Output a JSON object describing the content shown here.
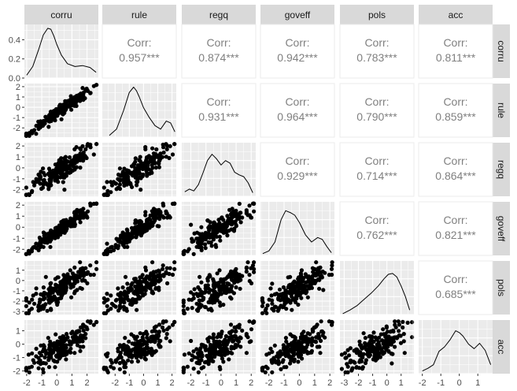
{
  "chart_data": {
    "type": "scatter",
    "title": "",
    "variables": [
      "corru",
      "rule",
      "regq",
      "goveff",
      "pols",
      "acc"
    ],
    "correlations": [
      [
        null,
        "0.957***",
        "0.874***",
        "0.942***",
        "0.783***",
        "0.811***"
      ],
      [
        null,
        null,
        "0.931***",
        "0.964***",
        "0.790***",
        "0.859***"
      ],
      [
        null,
        null,
        null,
        "0.929***",
        "0.714***",
        "0.864***"
      ],
      [
        null,
        null,
        null,
        null,
        "0.762***",
        "0.821***"
      ],
      [
        null,
        null,
        null,
        null,
        null,
        "0.685***"
      ],
      [
        null,
        null,
        null,
        null,
        null,
        null
      ]
    ],
    "corr_label": "Corr:",
    "x_axis": {
      "corru": {
        "range": [
          -2.15,
          2.75
        ],
        "ticks": [
          -2,
          -1,
          0,
          1,
          2
        ],
        "tick_labels": [
          "-2",
          "-1",
          "0",
          "1",
          "2"
        ]
      },
      "rule": {
        "range": [
          -2.9,
          2.3
        ],
        "ticks": [
          -2,
          -1,
          0,
          1,
          2
        ],
        "tick_labels": [
          "-2",
          "-1",
          "0",
          "1",
          "2"
        ]
      },
      "regq": {
        "range": [
          -2.6,
          2.3
        ],
        "ticks": [
          -2,
          -1,
          0,
          1,
          2
        ],
        "tick_labels": [
          "-2",
          "-1",
          "0",
          "1",
          "2"
        ]
      },
      "goveff": {
        "range": [
          -2.55,
          2.3
        ],
        "ticks": [
          -2,
          -1,
          0,
          1,
          2
        ],
        "tick_labels": [
          "-2",
          "-1",
          "0",
          "1",
          "2"
        ]
      },
      "pols": {
        "range": [
          -3.3,
          1.9
        ],
        "ticks": [
          -3,
          -2,
          -1,
          0,
          1
        ],
        "tick_labels": [
          "-3",
          "-2",
          "-1",
          "0",
          "1"
        ]
      },
      "acc": {
        "range": [
          -2.2,
          1.8
        ],
        "ticks": [
          -2,
          -1,
          0,
          1
        ],
        "tick_labels": [
          "-2",
          "-1",
          "0",
          "1"
        ]
      }
    },
    "y_axis_rows": [
      {
        "var": "corru",
        "range": [
          0,
          0.56
        ],
        "ticks": [
          0.0,
          0.2,
          0.4
        ],
        "tick_labels": [
          "0.0",
          "0.2",
          "0.4"
        ]
      },
      {
        "var": "rule",
        "range": [
          -2.9,
          2.3
        ],
        "ticks": [
          -2,
          -1,
          0,
          1,
          2
        ],
        "tick_labels": [
          "-2",
          "-1",
          "0",
          "1",
          "2"
        ]
      },
      {
        "var": "regq",
        "range": [
          -2.6,
          2.3
        ],
        "ticks": [
          -2,
          -1,
          0,
          1,
          2
        ],
        "tick_labels": [
          "-2",
          "-1",
          "0",
          "1",
          "2"
        ]
      },
      {
        "var": "goveff",
        "range": [
          -2.55,
          2.3
        ],
        "ticks": [
          -2,
          -1,
          0,
          1,
          2
        ],
        "tick_labels": [
          "-2",
          "-1",
          "0",
          "1",
          "2"
        ]
      },
      {
        "var": "pols",
        "range": [
          -3.3,
          1.9
        ],
        "ticks": [
          -3,
          -2,
          -1,
          0,
          1
        ],
        "tick_labels": [
          "-3",
          "-2",
          "-1",
          "0",
          "1"
        ]
      },
      {
        "var": "acc",
        "range": [
          -2.2,
          1.8
        ],
        "ticks": [
          -2,
          -1,
          0,
          1
        ],
        "tick_labels": [
          "-2",
          "-1",
          "0",
          "1"
        ]
      }
    ],
    "densities": {
      "corru": {
        "x": [
          -2.0,
          -1.6,
          -1.2,
          -0.9,
          -0.6,
          -0.4,
          -0.2,
          0.0,
          0.3,
          0.7,
          1.2,
          1.7,
          2.2,
          2.6
        ],
        "y": [
          0.03,
          0.12,
          0.3,
          0.45,
          0.52,
          0.51,
          0.44,
          0.35,
          0.24,
          0.15,
          0.12,
          0.13,
          0.11,
          0.06
        ]
      },
      "rule": {
        "x": [
          -2.4,
          -1.9,
          -1.4,
          -1.0,
          -0.7,
          -0.5,
          -0.3,
          0.0,
          0.4,
          0.8,
          1.2,
          1.6,
          1.9,
          2.2
        ],
        "y": [
          0.02,
          0.09,
          0.3,
          0.5,
          0.56,
          0.52,
          0.45,
          0.33,
          0.22,
          0.13,
          0.09,
          0.18,
          0.16,
          0.06
        ]
      },
      "regq": {
        "x": [
          -2.4,
          -2.1,
          -1.8,
          -1.5,
          -1.2,
          -0.9,
          -0.6,
          -0.3,
          0.0,
          0.3,
          0.6,
          0.9,
          1.2,
          1.5,
          1.8,
          2.1
        ],
        "y": [
          0.05,
          0.08,
          0.06,
          0.13,
          0.26,
          0.4,
          0.47,
          0.42,
          0.35,
          0.4,
          0.37,
          0.27,
          0.24,
          0.22,
          0.15,
          0.04
        ]
      },
      "goveff": {
        "x": [
          -2.4,
          -2.0,
          -1.6,
          -1.2,
          -0.9,
          -0.6,
          -0.3,
          0.0,
          0.4,
          0.8,
          1.2,
          1.5,
          1.8,
          2.1
        ],
        "y": [
          0.02,
          0.05,
          0.15,
          0.4,
          0.5,
          0.48,
          0.45,
          0.37,
          0.23,
          0.15,
          0.2,
          0.18,
          0.1,
          0.03
        ]
      },
      "pols": {
        "x": [
          -3.1,
          -2.6,
          -2.1,
          -1.6,
          -1.1,
          -0.6,
          -0.2,
          0.1,
          0.4,
          0.7,
          1.0,
          1.3,
          1.6
        ],
        "y": [
          0.01,
          0.05,
          0.1,
          0.17,
          0.24,
          0.32,
          0.4,
          0.45,
          0.46,
          0.42,
          0.32,
          0.2,
          0.05
        ]
      },
      "acc": {
        "x": [
          -2.0,
          -1.7,
          -1.4,
          -1.1,
          -0.8,
          -0.5,
          -0.2,
          0.0,
          0.2,
          0.5,
          0.8,
          1.1,
          1.4,
          1.7
        ],
        "y": [
          0.03,
          0.06,
          0.1,
          0.25,
          0.3,
          0.38,
          0.48,
          0.46,
          0.42,
          0.33,
          0.28,
          0.34,
          0.26,
          0.1
        ]
      }
    },
    "grid": true,
    "point_color": "#000000",
    "panel_background": "#ebebeb",
    "strip_background": "#d9d9d9",
    "corr_text_color": "#808080",
    "sample_size": 190
  }
}
